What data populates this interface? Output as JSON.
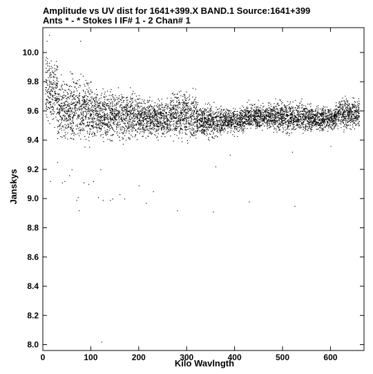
{
  "chart_data": {
    "type": "scatter",
    "title_line1": "Amplitude vs UV dist for 1641+399.X BAND.1   Source:1641+399",
    "title_line2": "Ants * - *     Stokes I  IF# 1 - 2  Chan# 1",
    "xlabel": "Kilo Wavlngth",
    "ylabel": "Janskys",
    "xlim": [
      0,
      670
    ],
    "ylim": [
      7.96,
      10.17
    ],
    "x_ticks": [
      0,
      100,
      200,
      300,
      400,
      500,
      600
    ],
    "y_ticks": [
      8.0,
      8.2,
      8.4,
      8.6,
      8.8,
      9.0,
      9.2,
      9.4,
      9.6,
      9.8,
      10.0
    ],
    "x_tick_labels": [
      "0",
      "100",
      "200",
      "300",
      "400",
      "500",
      "600"
    ],
    "y_tick_labels": [
      "8.0",
      "8.2",
      "8.4",
      "8.6",
      "8.8",
      "9.0",
      "9.2",
      "9.4",
      "9.6",
      "9.8",
      "10.0"
    ],
    "grid": false,
    "marker_color": "#000000",
    "bands": [
      [
        5,
        30,
        9.45,
        10.05
      ],
      [
        30,
        100,
        9.32,
        9.9
      ],
      [
        100,
        200,
        9.35,
        9.8
      ],
      [
        200,
        265,
        9.38,
        9.72
      ],
      [
        265,
        320,
        9.35,
        9.8
      ],
      [
        320,
        370,
        9.38,
        9.68
      ],
      [
        370,
        420,
        9.42,
        9.65
      ],
      [
        420,
        480,
        9.45,
        9.68
      ],
      [
        480,
        560,
        9.42,
        9.7
      ],
      [
        560,
        610,
        9.44,
        9.66
      ],
      [
        610,
        660,
        9.45,
        9.72
      ]
    ],
    "outliers": [
      [
        8,
        10.08
      ],
      [
        13,
        10.12
      ],
      [
        15,
        9.12
      ],
      [
        30,
        9.25
      ],
      [
        40,
        9.11
      ],
      [
        45,
        9.12
      ],
      [
        55,
        9.16
      ],
      [
        60,
        9.2
      ],
      [
        70,
        8.99
      ],
      [
        73,
        9.01
      ],
      [
        75,
        8.92
      ],
      [
        78,
        10.08
      ],
      [
        85,
        9.11
      ],
      [
        95,
        9.1
      ],
      [
        105,
        9.12
      ],
      [
        115,
        9.01
      ],
      [
        120,
        9.2
      ],
      [
        122,
        8.02
      ],
      [
        125,
        8.99
      ],
      [
        140,
        8.99
      ],
      [
        145,
        9.0
      ],
      [
        160,
        9.03
      ],
      [
        170,
        9.0
      ],
      [
        200,
        9.09
      ],
      [
        215,
        8.97
      ],
      [
        230,
        9.05
      ],
      [
        280,
        8.92
      ],
      [
        355,
        8.91
      ],
      [
        430,
        8.98
      ],
      [
        525,
        8.95
      ],
      [
        360,
        9.22
      ],
      [
        390,
        9.3
      ],
      [
        520,
        9.32
      ],
      [
        600,
        9.36
      ]
    ]
  }
}
